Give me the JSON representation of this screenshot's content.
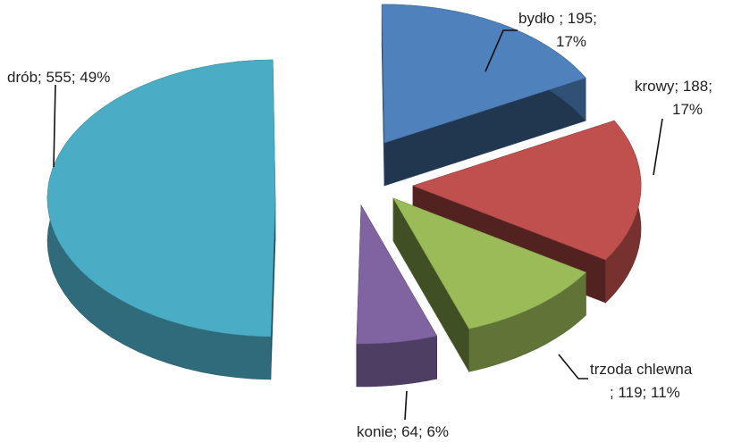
{
  "chart_data": {
    "type": "pie",
    "title": "",
    "style": "exploded 3D pie",
    "slices": [
      {
        "label": "drób",
        "value": 555,
        "percent": "49%",
        "color": "#4BACC6",
        "label_lines": [
          "drób; 555; 49%"
        ]
      },
      {
        "label": "bydło",
        "value": 195,
        "percent": "17%",
        "color": "#4F81BD",
        "label_lines": [
          "bydło ; 195;",
          "17%"
        ]
      },
      {
        "label": "krowy",
        "value": 188,
        "percent": "17%",
        "color": "#C0504D",
        "label_lines": [
          "krowy; 188;",
          "17%"
        ]
      },
      {
        "label": "trzoda chlewna",
        "value": 119,
        "percent": "11%",
        "color": "#9BBB59",
        "label_lines": [
          "trzoda chlewna",
          "; 119; 11%"
        ]
      },
      {
        "label": "konie",
        "value": 64,
        "percent": "6%",
        "color": "#8064A2",
        "label_lines": [
          "konie; 64; 6%"
        ]
      }
    ]
  }
}
